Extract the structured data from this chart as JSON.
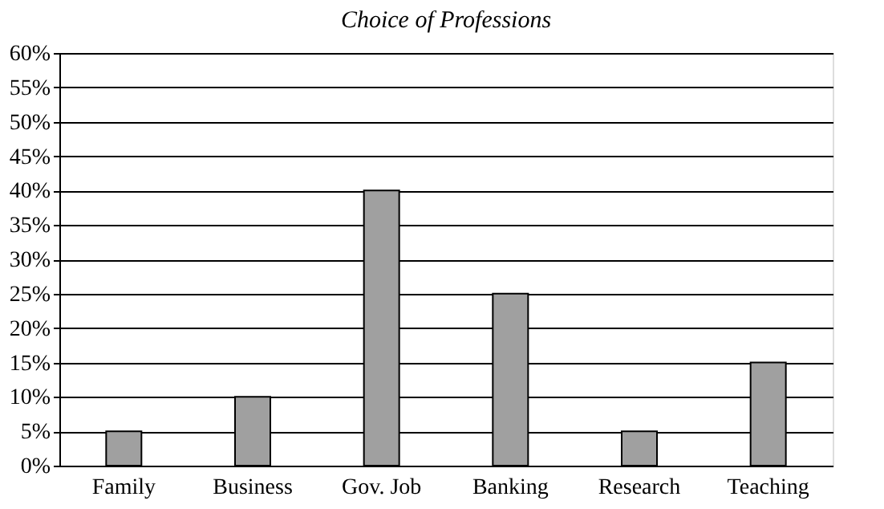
{
  "chart_data": {
    "type": "bar",
    "title": "Choice of Professions",
    "categories": [
      "Family",
      "Business",
      "Gov. Job",
      "Banking",
      "Research",
      "Teaching"
    ],
    "values": [
      5,
      10,
      40,
      25,
      5,
      15
    ],
    "color": "#a0a0a0",
    "ylim": [
      0,
      60
    ],
    "yticks": [
      {
        "value": 0,
        "label": "0%"
      },
      {
        "value": 5,
        "label": "5%"
      },
      {
        "value": 10,
        "label": "10%"
      },
      {
        "value": 15,
        "label": "15%"
      },
      {
        "value": 20,
        "label": "20%"
      },
      {
        "value": 25,
        "label": "25%"
      },
      {
        "value": 30,
        "label": "30%"
      },
      {
        "value": 35,
        "label": "35%"
      },
      {
        "value": 40,
        "label": "40%"
      },
      {
        "value": 45,
        "label": "45%"
      },
      {
        "value": 50,
        "label": "50%"
      },
      {
        "value": 55,
        "label": "55%"
      },
      {
        "value": 60,
        "label": "60%"
      }
    ],
    "grid": "y"
  }
}
